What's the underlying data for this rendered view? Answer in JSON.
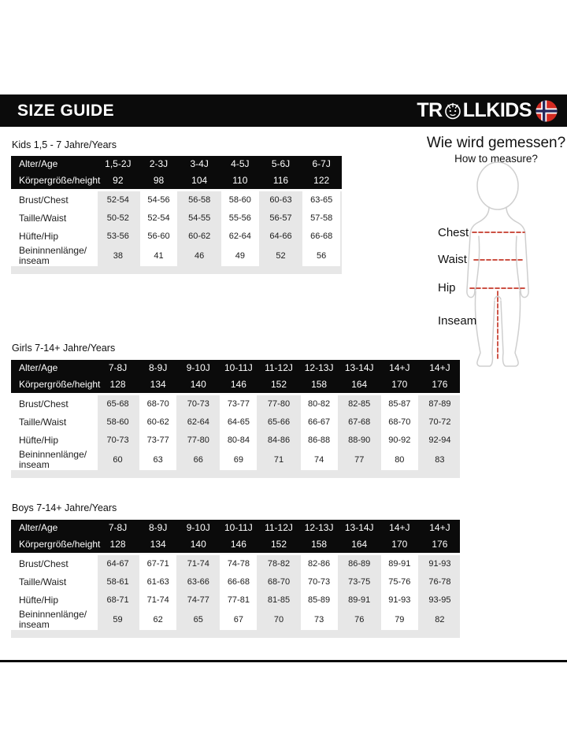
{
  "header": {
    "title": "SIZE GUIDE",
    "brand_prefix": "TR",
    "brand_suffix": "LLKIDS",
    "icons": [
      "troll-emblem-icon",
      "norwegian-flag-icon"
    ]
  },
  "measure": {
    "title": "Wie wird gemessen?",
    "subtitle": "How to measure?",
    "labels": [
      "Chest",
      "Waist",
      "Hip",
      "Inseam"
    ],
    "line_color": "#c5392a"
  },
  "colors": {
    "bar_black": "#0b0b0b",
    "stripe_gray": "#e7e7e7",
    "flag_red": "#d32b22",
    "flag_blue": "#27285c",
    "flag_white": "#ffffff",
    "figure_outline": "#cfcfcf"
  },
  "tables": [
    {
      "section_label": "Kids 1,5 - 7 Jahre/Years",
      "header_rows": [
        {
          "label": "Alter/Age",
          "values": [
            "1,5-2J",
            "2-3J",
            "3-4J",
            "4-5J",
            "5-6J",
            "6-7J"
          ]
        },
        {
          "label": "Körpergröße/height",
          "values": [
            "92",
            "98",
            "104",
            "110",
            "116",
            "122"
          ]
        }
      ],
      "body_rows": [
        {
          "label": "Brust/Chest",
          "values": [
            "52-54",
            "54-56",
            "56-58",
            "58-60",
            "60-63",
            "63-65"
          ]
        },
        {
          "label": "Taille/Waist",
          "values": [
            "50-52",
            "52-54",
            "54-55",
            "55-56",
            "56-57",
            "57-58"
          ]
        },
        {
          "label": "Hüfte/Hip",
          "values": [
            "53-56",
            "56-60",
            "60-62",
            "62-64",
            "64-66",
            "66-68"
          ]
        },
        {
          "label": "Beininnenlänge/ inseam",
          "values": [
            "38",
            "41",
            "46",
            "49",
            "52",
            "56"
          ]
        }
      ]
    },
    {
      "section_label": "Girls 7-14+ Jahre/Years",
      "header_rows": [
        {
          "label": "Alter/Age",
          "values": [
            "7-8J",
            "8-9J",
            "9-10J",
            "10-11J",
            "11-12J",
            "12-13J",
            "13-14J",
            "14+J",
            "14+J"
          ]
        },
        {
          "label": "Körpergröße/height",
          "values": [
            "128",
            "134",
            "140",
            "146",
            "152",
            "158",
            "164",
            "170",
            "176"
          ]
        }
      ],
      "body_rows": [
        {
          "label": "Brust/Chest",
          "values": [
            "65-68",
            "68-70",
            "70-73",
            "73-77",
            "77-80",
            "80-82",
            "82-85",
            "85-87",
            "87-89"
          ]
        },
        {
          "label": "Taille/Waist",
          "values": [
            "58-60",
            "60-62",
            "62-64",
            "64-65",
            "65-66",
            "66-67",
            "67-68",
            "68-70",
            "70-72"
          ]
        },
        {
          "label": "Hüfte/Hip",
          "values": [
            "70-73",
            "73-77",
            "77-80",
            "80-84",
            "84-86",
            "86-88",
            "88-90",
            "90-92",
            "92-94"
          ]
        },
        {
          "label": "Beininnenlänge/ inseam",
          "values": [
            "60",
            "63",
            "66",
            "69",
            "71",
            "74",
            "77",
            "80",
            "83"
          ]
        }
      ]
    },
    {
      "section_label": "Boys 7-14+ Jahre/Years",
      "header_rows": [
        {
          "label": "Alter/Age",
          "values": [
            "7-8J",
            "8-9J",
            "9-10J",
            "10-11J",
            "11-12J",
            "12-13J",
            "13-14J",
            "14+J",
            "14+J"
          ]
        },
        {
          "label": "Körpergröße/height",
          "values": [
            "128",
            "134",
            "140",
            "146",
            "152",
            "158",
            "164",
            "170",
            "176"
          ]
        }
      ],
      "body_rows": [
        {
          "label": "Brust/Chest",
          "values": [
            "64-67",
            "67-71",
            "71-74",
            "74-78",
            "78-82",
            "82-86",
            "86-89",
            "89-91",
            "91-93"
          ]
        },
        {
          "label": "Taille/Waist",
          "values": [
            "58-61",
            "61-63",
            "63-66",
            "66-68",
            "68-70",
            "70-73",
            "73-75",
            "75-76",
            "76-78"
          ]
        },
        {
          "label": "Hüfte/Hip",
          "values": [
            "68-71",
            "71-74",
            "74-77",
            "77-81",
            "81-85",
            "85-89",
            "89-91",
            "91-93",
            "93-95"
          ]
        },
        {
          "label": "Beininnenlänge/ inseam",
          "values": [
            "59",
            "62",
            "65",
            "67",
            "70",
            "73",
            "76",
            "79",
            "82"
          ]
        }
      ]
    }
  ]
}
